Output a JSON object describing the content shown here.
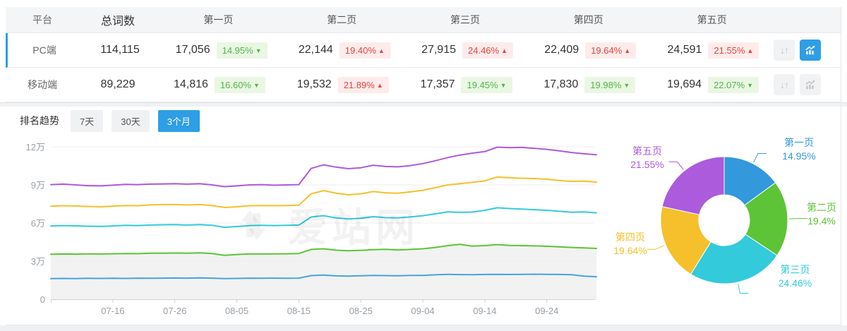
{
  "table": {
    "columns": [
      "平台",
      "总词数",
      "第一页",
      "第二页",
      "第三页",
      "第四页",
      "第五页"
    ],
    "actions_header": "",
    "rows": [
      {
        "platform": "PC端",
        "total": "114,115",
        "selected": true,
        "chart_active": true,
        "pages": [
          {
            "value": "17,056",
            "pct": "14.95%",
            "dir": "down"
          },
          {
            "value": "22,144",
            "pct": "19.40%",
            "dir": "up"
          },
          {
            "value": "27,915",
            "pct": "24.46%",
            "dir": "up"
          },
          {
            "value": "22,409",
            "pct": "19.64%",
            "dir": "up"
          },
          {
            "value": "24,591",
            "pct": "21.55%",
            "dir": "up"
          }
        ]
      },
      {
        "platform": "移动端",
        "total": "89,229",
        "selected": false,
        "chart_active": false,
        "pages": [
          {
            "value": "14,816",
            "pct": "16.60%",
            "dir": "down"
          },
          {
            "value": "19,532",
            "pct": "21.89%",
            "dir": "up"
          },
          {
            "value": "17,357",
            "pct": "19.45%",
            "dir": "down"
          },
          {
            "value": "17,830",
            "pct": "19.98%",
            "dir": "down"
          },
          {
            "value": "19,694",
            "pct": "22.07%",
            "dir": "down"
          }
        ]
      }
    ]
  },
  "icons": {
    "sort_glyph": "↓↑"
  },
  "trend": {
    "label": "排名趋势",
    "tabs": [
      {
        "label": "7天",
        "active": false
      },
      {
        "label": "30天",
        "active": false
      },
      {
        "label": "3个月",
        "active": true
      }
    ]
  },
  "watermark": "爱站网",
  "colors": {
    "accent_blue": "#2e9ee6",
    "badge_up_text": "#e2463c",
    "badge_down_text": "#4fb84a",
    "palette": [
      "#3a9bdc",
      "#5cc436",
      "#33cadb",
      "#f5c02c",
      "#ab5bdc"
    ]
  },
  "chart_data": [
    {
      "type": "line",
      "title": "排名趋势 (3个月)",
      "ylabel": "",
      "xlabel": "",
      "ylim": [
        0,
        12
      ],
      "y_tick_values": [
        0,
        3,
        6,
        9,
        12
      ],
      "y_tick_labels": [
        "0",
        "3万",
        "6万",
        "9万",
        "12万"
      ],
      "x_tick_labels": [
        "07-16",
        "07-26",
        "08-05",
        "08-15",
        "08-25",
        "09-04",
        "09-14",
        "09-24"
      ],
      "x_tick_indices": [
        5,
        10,
        15,
        20,
        25,
        30,
        35,
        40
      ],
      "grid": true,
      "unit": "万",
      "series": [
        {
          "name": "第一页",
          "color": "#4aa1e0",
          "values": [
            1.62,
            1.64,
            1.63,
            1.65,
            1.64,
            1.65,
            1.64,
            1.66,
            1.65,
            1.66,
            1.67,
            1.66,
            1.68,
            1.66,
            1.62,
            1.64,
            1.66,
            1.65,
            1.66,
            1.65,
            1.66,
            1.86,
            1.9,
            1.84,
            1.82,
            1.85,
            1.88,
            1.86,
            1.85,
            1.87,
            1.88,
            1.92,
            1.96,
            1.94,
            1.93,
            1.95,
            1.96,
            1.95,
            1.96,
            1.97,
            1.96,
            1.95,
            1.93,
            1.82,
            1.77
          ]
        },
        {
          "name": "第二页",
          "color": "#5cc436",
          "area": true,
          "values": [
            3.54,
            3.56,
            3.55,
            3.57,
            3.56,
            3.58,
            3.6,
            3.59,
            3.62,
            3.63,
            3.64,
            3.62,
            3.65,
            3.6,
            3.46,
            3.52,
            3.57,
            3.56,
            3.57,
            3.58,
            3.6,
            3.92,
            3.97,
            3.86,
            3.82,
            3.85,
            3.9,
            3.93,
            3.87,
            3.92,
            3.97,
            4.08,
            4.22,
            4.32,
            4.18,
            4.22,
            4.3,
            4.24,
            4.22,
            4.2,
            4.17,
            4.12,
            4.08,
            4.04,
            4.0
          ]
        },
        {
          "name": "第三页",
          "color": "#33cadb",
          "values": [
            5.76,
            5.8,
            5.78,
            5.75,
            5.73,
            5.77,
            5.82,
            5.8,
            5.84,
            5.86,
            5.87,
            5.84,
            5.88,
            5.82,
            5.66,
            5.72,
            5.8,
            5.82,
            5.8,
            5.82,
            5.84,
            6.48,
            6.58,
            6.4,
            6.32,
            6.38,
            6.5,
            6.42,
            6.4,
            6.48,
            6.58,
            6.72,
            6.88,
            6.84,
            6.86,
            7.0,
            7.2,
            7.14,
            7.1,
            7.05,
            7.0,
            6.92,
            6.85,
            6.87,
            6.8
          ]
        },
        {
          "name": "第四页",
          "color": "#f5c02c",
          "values": [
            7.32,
            7.36,
            7.34,
            7.3,
            7.28,
            7.33,
            7.38,
            7.36,
            7.42,
            7.45,
            7.46,
            7.42,
            7.46,
            7.38,
            7.22,
            7.28,
            7.36,
            7.38,
            7.36,
            7.38,
            7.4,
            8.3,
            8.55,
            8.35,
            8.22,
            8.3,
            8.48,
            8.38,
            8.35,
            8.45,
            8.58,
            8.78,
            9.0,
            9.1,
            9.2,
            9.32,
            9.62,
            9.56,
            9.52,
            9.5,
            9.45,
            9.35,
            9.28,
            9.3,
            9.22
          ]
        },
        {
          "name": "第五页",
          "color": "#ab5bdc",
          "values": [
            9.02,
            9.06,
            9.0,
            8.94,
            8.92,
            8.98,
            9.04,
            9.02,
            9.06,
            9.08,
            9.1,
            9.06,
            9.1,
            9.0,
            8.86,
            8.92,
            9.0,
            9.02,
            8.98,
            9.0,
            9.02,
            10.3,
            10.58,
            10.4,
            10.28,
            10.35,
            10.55,
            10.45,
            10.42,
            10.52,
            10.68,
            10.9,
            11.15,
            11.35,
            11.5,
            11.62,
            11.97,
            11.93,
            11.95,
            11.88,
            11.8,
            11.68,
            11.55,
            11.45,
            11.38
          ]
        }
      ]
    },
    {
      "type": "pie",
      "donut": true,
      "legend_position": "labels-around",
      "slices": [
        {
          "label": "第一页",
          "pct": 14.95,
          "pct_text": "14.95%",
          "color": "#3398dc"
        },
        {
          "label": "第二页",
          "pct": 19.4,
          "pct_text": "19.4%",
          "color": "#5cc436"
        },
        {
          "label": "第三页",
          "pct": 24.46,
          "pct_text": "24.46%",
          "color": "#33cadb"
        },
        {
          "label": "第四页",
          "pct": 19.64,
          "pct_text": "19.64%",
          "color": "#f5c02c"
        },
        {
          "label": "第五页",
          "pct": 21.55,
          "pct_text": "21.55%",
          "color": "#ab5bdc"
        }
      ]
    }
  ]
}
